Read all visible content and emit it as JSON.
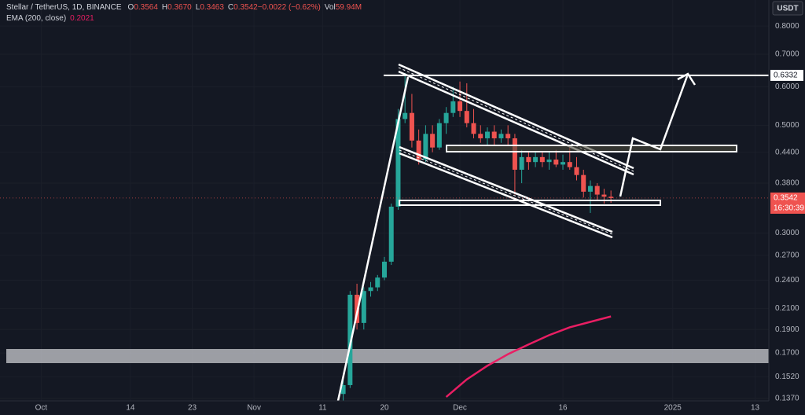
{
  "chart_data": {
    "type": "candlestick",
    "header": {
      "symbol": "Stellar / TetherUS, 1D, BINANCE",
      "items": [
        {
          "key": "O",
          "value": "0.3564"
        },
        {
          "key": "H",
          "value": "0.3670"
        },
        {
          "key": "L",
          "value": "0.3463"
        },
        {
          "key": "C",
          "value": "0.3542"
        },
        {
          "key": "",
          "value": "−0.0022 (−0.62%)"
        },
        {
          "key": "Vol",
          "value": "59.94M"
        }
      ],
      "indicator": "EMA (200, close)",
      "indicator_value": "0.2021"
    },
    "currency": "USDT",
    "x": [
      44,
      45,
      46,
      47,
      48,
      49,
      50,
      51,
      52,
      53,
      54,
      55,
      56,
      57,
      58,
      59,
      60,
      61,
      62,
      63,
      64,
      65,
      66,
      67,
      68,
      69,
      70,
      71,
      72,
      73,
      74,
      75,
      76,
      77,
      78,
      79,
      80,
      81,
      82,
      83
    ],
    "open": [
      0.14,
      0.146,
      0.224,
      0.196,
      0.228,
      0.232,
      0.243,
      0.262,
      0.34,
      0.515,
      0.53,
      0.465,
      0.425,
      0.48,
      0.45,
      0.505,
      0.53,
      0.56,
      0.535,
      0.505,
      0.48,
      0.47,
      0.485,
      0.47,
      0.48,
      0.47,
      0.405,
      0.43,
      0.42,
      0.43,
      0.42,
      0.425,
      0.415,
      0.42,
      0.41,
      0.395,
      0.365,
      0.375,
      0.36,
      0.3564
    ],
    "high": [
      0.15,
      0.228,
      0.236,
      0.232,
      0.238,
      0.246,
      0.268,
      0.345,
      0.54,
      0.64,
      0.58,
      0.49,
      0.5,
      0.5,
      0.515,
      0.545,
      0.6,
      0.615,
      0.61,
      0.54,
      0.5,
      0.495,
      0.5,
      0.49,
      0.5,
      0.48,
      0.445,
      0.44,
      0.44,
      0.44,
      0.44,
      0.445,
      0.435,
      0.45,
      0.43,
      0.405,
      0.385,
      0.38,
      0.37,
      0.367
    ],
    "low": [
      0.1355,
      0.144,
      0.19,
      0.19,
      0.222,
      0.228,
      0.24,
      0.258,
      0.335,
      0.505,
      0.45,
      0.415,
      0.42,
      0.44,
      0.445,
      0.48,
      0.52,
      0.52,
      0.495,
      0.47,
      0.46,
      0.455,
      0.455,
      0.46,
      0.455,
      0.36,
      0.38,
      0.405,
      0.41,
      0.41,
      0.405,
      0.41,
      0.405,
      0.405,
      0.385,
      0.355,
      0.33,
      0.35,
      0.345,
      0.3463
    ],
    "close": [
      0.146,
      0.224,
      0.196,
      0.228,
      0.232,
      0.243,
      0.262,
      0.34,
      0.515,
      0.53,
      0.465,
      0.425,
      0.48,
      0.45,
      0.505,
      0.53,
      0.56,
      0.535,
      0.505,
      0.48,
      0.47,
      0.485,
      0.47,
      0.48,
      0.47,
      0.405,
      0.43,
      0.42,
      0.43,
      0.42,
      0.425,
      0.415,
      0.42,
      0.41,
      0.395,
      0.365,
      0.375,
      0.36,
      0.3564,
      0.3542
    ],
    "up_color": "#26a69a",
    "down_color": "#ef5350",
    "ema": {
      "name": "EMA (200, close)",
      "color": "#e91e63",
      "x": [
        59,
        62,
        65,
        68,
        71,
        74,
        77,
        80,
        83
      ],
      "values": [
        0.138,
        0.15,
        0.16,
        0.169,
        0.177,
        0.185,
        0.192,
        0.197,
        0.2021
      ]
    },
    "price_lines": [
      {
        "value": 0.6332,
        "label": "0.6332"
      }
    ],
    "last_price": {
      "value": 0.3542,
      "label": "0.3542",
      "countdown": "16:30:39"
    },
    "log_scale": true,
    "grid": true,
    "xlim": [
      -6,
      106
    ],
    "ylim": [
      0.1355,
      0.905
    ],
    "xticks": [
      {
        "value": 0,
        "label": "Oct"
      },
      {
        "value": 13,
        "label": "14"
      },
      {
        "value": 22,
        "label": "23"
      },
      {
        "value": 31,
        "label": "Nov"
      },
      {
        "value": 41,
        "label": "11"
      },
      {
        "value": 50,
        "label": "20"
      },
      {
        "value": 61,
        "label": "Dec"
      },
      {
        "value": 76,
        "label": "16"
      },
      {
        "value": 92,
        "label": "2025"
      },
      {
        "value": 104,
        "label": "13"
      }
    ],
    "yticks": [
      {
        "value": 0.8,
        "label": "0.8000"
      },
      {
        "value": 0.7,
        "label": "0.7000"
      },
      {
        "value": 0.6,
        "label": "0.6000"
      },
      {
        "value": 0.5,
        "label": "0.5000"
      },
      {
        "value": 0.44,
        "label": "0.4400"
      },
      {
        "value": 0.38,
        "label": "0.3800"
      },
      {
        "value": 0.3,
        "label": "0.3000"
      },
      {
        "value": 0.27,
        "label": "0.2700"
      },
      {
        "value": 0.24,
        "label": "0.2400"
      },
      {
        "value": 0.21,
        "label": "0.2100"
      },
      {
        "value": 0.19,
        "label": "0.1900"
      },
      {
        "value": 0.17,
        "label": "0.1700"
      },
      {
        "value": 0.152,
        "label": "0.1520"
      },
      {
        "value": 0.137,
        "label": "0.1370"
      }
    ]
  }
}
